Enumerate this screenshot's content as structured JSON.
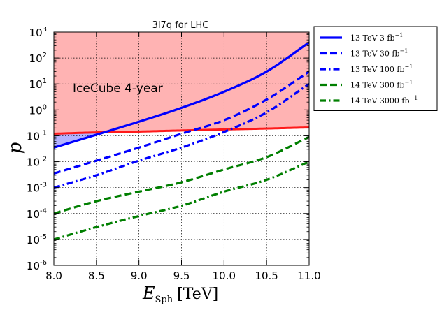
{
  "chart_data": {
    "type": "line",
    "title": "3l7q for LHC",
    "xlabel": "E",
    "xlabel_sub": "Sph",
    "xlabel_unit": "[TeV]",
    "ylabel": "p",
    "xlim": [
      8.0,
      11.0
    ],
    "ylim_log10": [
      -6,
      3
    ],
    "yscale": "log",
    "grid": true,
    "legend_position": "outside-right-top",
    "xticks": [
      "8.0",
      "8.5",
      "9.0",
      "9.5",
      "10.0",
      "10.5",
      "11.0"
    ],
    "yticks": [
      {
        "base": "10",
        "exp": "3"
      },
      {
        "base": "10",
        "exp": "2"
      },
      {
        "base": "10",
        "exp": "1"
      },
      {
        "base": "10",
        "exp": "0"
      },
      {
        "base": "10",
        "exp": "-1"
      },
      {
        "base": "10",
        "exp": "-2"
      },
      {
        "base": "10",
        "exp": "-3"
      },
      {
        "base": "10",
        "exp": "-4"
      },
      {
        "base": "10",
        "exp": "-5"
      },
      {
        "base": "10",
        "exp": "-6"
      }
    ],
    "x": [
      8.0,
      8.5,
      9.0,
      9.5,
      10.0,
      10.5,
      11.0
    ],
    "region": {
      "label": "IceCube 4-year",
      "color": "#ffb3b3",
      "lower_boundary": [
        0.12,
        0.135,
        0.145,
        0.16,
        0.175,
        0.19,
        0.21
      ],
      "boundary_color": "#ff1a1a"
    },
    "excluded_gap_color": "#b3b3ff",
    "series": [
      {
        "name": "13 TeV 3 fb",
        "sup": "−1",
        "color": "#0000ff",
        "dash": "solid",
        "values": [
          0.035,
          0.11,
          0.35,
          1.2,
          5.0,
          30,
          400
        ]
      },
      {
        "name": "13 TeV 30 fb",
        "sup": "−1",
        "color": "#0000ff",
        "dash": "dashed",
        "values": [
          0.0035,
          0.011,
          0.035,
          0.12,
          0.4,
          2.5,
          30
        ]
      },
      {
        "name": "13 TeV 100 fb",
        "sup": "−1",
        "color": "#0000ff",
        "dash": "dashdot",
        "values": [
          0.001,
          0.003,
          0.011,
          0.035,
          0.14,
          0.8,
          10
        ]
      },
      {
        "name": "14 TeV 300 fb",
        "sup": "−1",
        "color": "#007f00",
        "dash": "dashed",
        "values": [
          0.0001,
          0.0003,
          0.0007,
          0.0016,
          0.005,
          0.015,
          0.09
        ]
      },
      {
        "name": "14 TeV 3000 fb",
        "sup": "−1",
        "color": "#007f00",
        "dash": "dashdot",
        "values": [
          1e-05,
          3e-05,
          8e-05,
          0.0002,
          0.0007,
          0.002,
          0.01
        ]
      }
    ]
  }
}
